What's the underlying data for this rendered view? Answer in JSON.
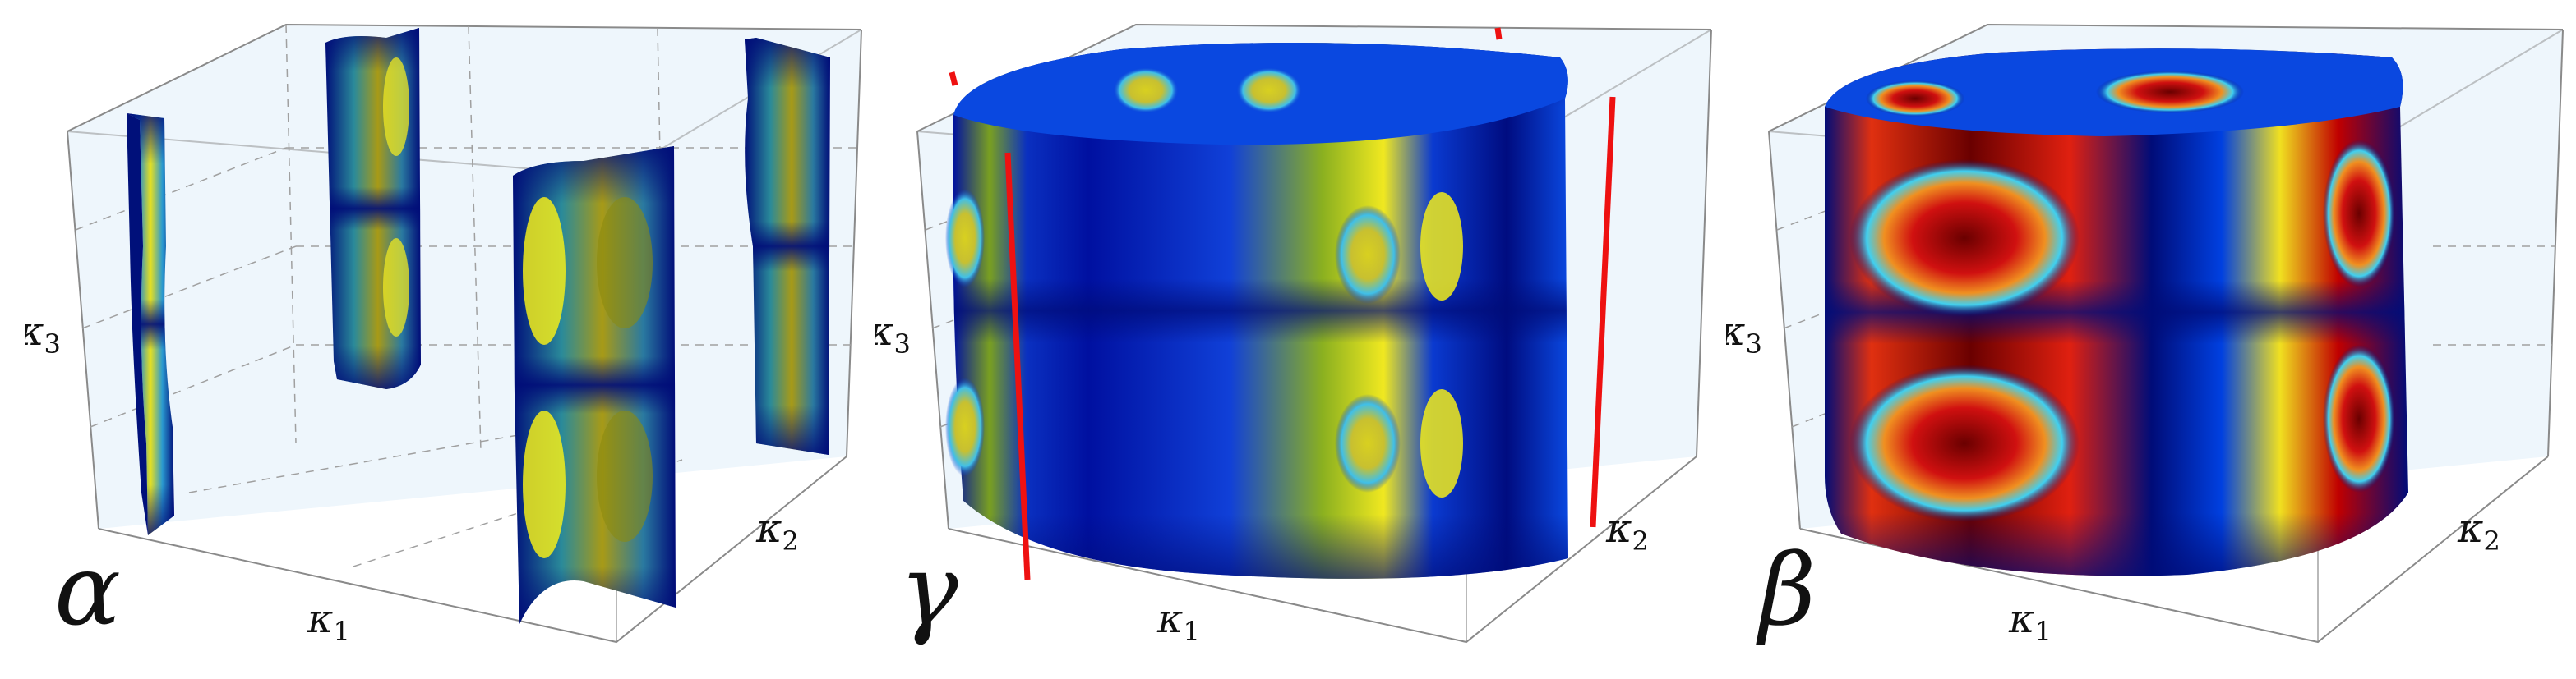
{
  "panels": [
    {
      "id": "alpha",
      "greek": "α",
      "axes": {
        "k1": "κ",
        "k1_sub": "1",
        "k2": "κ",
        "k2_sub": "2",
        "k3": "κ",
        "k3_sub": "3"
      }
    },
    {
      "id": "gamma",
      "greek": "γ",
      "axes": {
        "k1": "κ",
        "k1_sub": "1",
        "k2": "κ",
        "k2_sub": "2",
        "k3": "κ",
        "k3_sub": "3"
      }
    },
    {
      "id": "beta",
      "greek": "β",
      "axes": {
        "k1": "κ",
        "k1_sub": "1",
        "k2": "κ",
        "k2_sub": "2",
        "k3": "κ",
        "k3_sub": "3"
      }
    }
  ],
  "colors": {
    "box_edge": "#8a8a8a",
    "grid_dash": "#a0a0a0",
    "pane_fill": "#eef6fc",
    "surface_dark": "#000c78",
    "surface_mid": "#0a3ad0",
    "surface_cyan": "#3fd8f0",
    "surface_yellow": "#f2ec1a",
    "surface_olive": "#8a8a10",
    "surface_red": "#e01010",
    "surface_darkred": "#7a0000",
    "line_red": "#ee1111"
  }
}
